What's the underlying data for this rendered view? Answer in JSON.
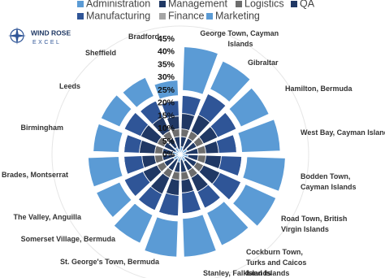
{
  "logo": {
    "line1": "WIND ROSE",
    "line2": "EXCEL"
  },
  "chart_data": {
    "type": "polar-stacked-bar",
    "categories": [
      "George Town, Cayman Islands",
      "Gibraltar",
      "Hamilton, Bermuda",
      "West Bay, Cayman Islands",
      "Bodden Town, Cayman Islands",
      "Road Town, British Virgin Islands",
      "Cockburn Town, Turks and Caicos Islands",
      "Stanley, Falkland Islands",
      "St. George's Town, Bermuda",
      "Somerset Village, Bermuda",
      "The Valley, Anguilla",
      "Brades, Montserrat",
      "Birmingham",
      "Leeds",
      "Sheffield",
      "Bradford"
    ],
    "series": [
      {
        "name": "Administration",
        "color": "#5b9bd5",
        "values": [
          3,
          2,
          3,
          2,
          3,
          2,
          3,
          2,
          3,
          2,
          3,
          2,
          3,
          2,
          3,
          2
        ]
      },
      {
        "name": "Management",
        "color": "#1f3864",
        "values": [
          4,
          5,
          4,
          5,
          4,
          5,
          4,
          5,
          4,
          5,
          4,
          5,
          4,
          5,
          4,
          5
        ]
      },
      {
        "name": "Logistics",
        "color": "#6d6d6d",
        "values": [
          3,
          3,
          3,
          3,
          3,
          3,
          3,
          3,
          3,
          3,
          3,
          3,
          3,
          3,
          3,
          3
        ]
      },
      {
        "name": "QA",
        "color": "#203864",
        "values": [
          6,
          7,
          6,
          5,
          6,
          7,
          6,
          5,
          6,
          7,
          6,
          5,
          6,
          7,
          6,
          5
        ]
      },
      {
        "name": "Manufacturing",
        "color": "#2f5597",
        "values": [
          7,
          9,
          8,
          7,
          8,
          9,
          7,
          8,
          8,
          7,
          8,
          7,
          6,
          7,
          7,
          6
        ]
      },
      {
        "name": "Finance",
        "color": "#ffffff",
        "values": [
          2,
          2,
          2,
          2,
          2,
          2,
          2,
          2,
          2,
          2,
          2,
          2,
          2,
          2,
          2,
          2
        ]
      },
      {
        "name": "Marketing",
        "color": "#5b9bd5",
        "values": [
          17,
          12,
          12,
          15,
          15,
          13,
          14,
          15,
          14,
          12,
          10,
          12,
          10,
          8,
          8,
          6
        ]
      }
    ],
    "legend_swatches": [
      "#5b9bd5",
      "#1f3864",
      "#6d6d6d",
      "#203864",
      "#2f5597",
      "#a5a5a5",
      "#5b9bd5"
    ],
    "ylim": [
      0,
      45
    ],
    "yticks": [
      {
        "value": 0,
        "label": "0%"
      },
      {
        "value": 5,
        "label": "5%"
      },
      {
        "value": 10,
        "label": "10%"
      },
      {
        "value": 15,
        "label": "15%"
      },
      {
        "value": 20,
        "label": "20%"
      },
      {
        "value": 25,
        "label": "25%"
      },
      {
        "value": 30,
        "label": "30%"
      },
      {
        "value": 35,
        "label": "35%"
      },
      {
        "value": 40,
        "label": "40%"
      },
      {
        "value": 45,
        "label": "45%"
      }
    ],
    "legend": "top"
  }
}
